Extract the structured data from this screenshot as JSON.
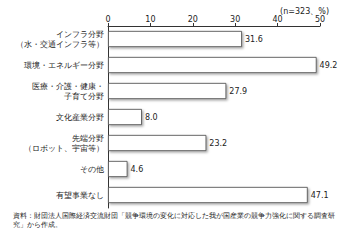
{
  "chart_data": {
    "type": "bar",
    "orientation": "horizontal",
    "categories": [
      "インフラ分野\n（水・交通インフラ等）",
      "環境・エネルギー分野",
      "医療・介護・健康・\n子育て分野",
      "文化産業分野",
      "先端分野\n（ロボット、宇宙等）",
      "その他",
      "有望事業なし"
    ],
    "values": [
      31.6,
      49.2,
      27.9,
      8.0,
      23.2,
      4.6,
      47.1
    ],
    "value_labels": [
      "31.6",
      "49.2",
      "27.9",
      "8.0",
      "23.2",
      "4.6",
      "47.1"
    ],
    "data_labels": true,
    "color": "#ffffff",
    "xlim": [
      0,
      50
    ],
    "xticks": [
      0,
      10,
      20,
      30,
      40,
      50
    ],
    "grid": false,
    "annotations": [
      "(n=323、%)",
      "資料：財団法人国際経済交流財団「競争環境の変化に対応した我が国産業の競争力強化に関する調査研究」から作成。"
    ]
  }
}
